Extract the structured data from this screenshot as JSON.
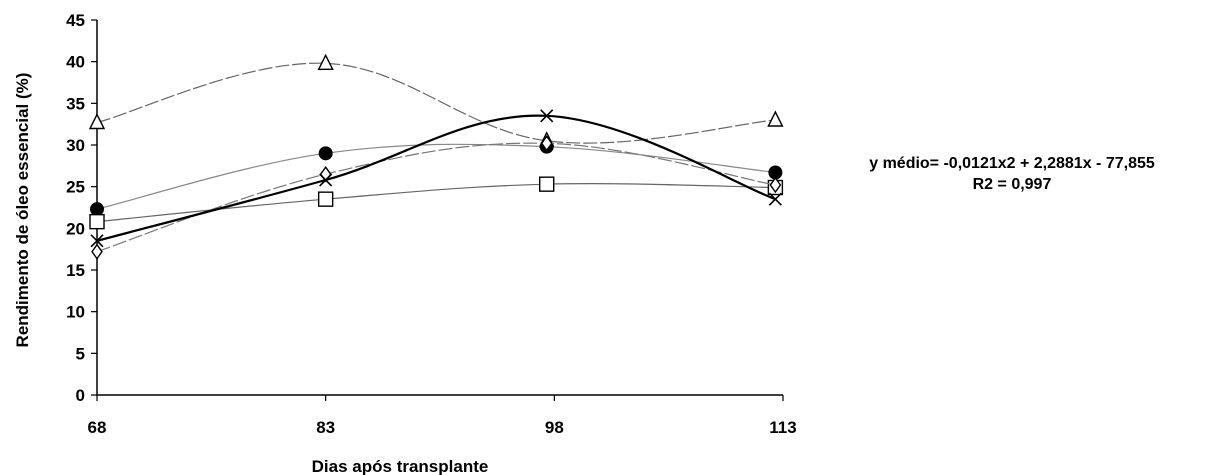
{
  "chart_data": {
    "type": "line",
    "title": "",
    "xlabel": "Dias após transplante",
    "ylabel": "Rendimento de óleo essencial (%)",
    "x": [
      68,
      83,
      98,
      113
    ],
    "x_ticks": [
      "68",
      "83",
      "98",
      "113"
    ],
    "y_ticks": [
      "0",
      "5",
      "10",
      "15",
      "20",
      "25",
      "30",
      "35",
      "40",
      "45"
    ],
    "xlim": [
      68,
      113
    ],
    "ylim": [
      0,
      45
    ],
    "grid": false,
    "legend": "none",
    "series": [
      {
        "marker": "triangle",
        "line": "dashed",
        "color": "#666666",
        "values": [
          [
            68,
            32.7
          ],
          [
            83,
            39.8
          ],
          [
            97.5,
            30.5
          ],
          [
            112.5,
            33.0
          ]
        ]
      },
      {
        "marker": "circle",
        "line": "solid",
        "color": "#888888",
        "values": [
          [
            68,
            22.3
          ],
          [
            83,
            29.0
          ],
          [
            97.5,
            29.8
          ],
          [
            112.5,
            26.7
          ]
        ]
      },
      {
        "marker": "square",
        "line": "solid",
        "color": "#666666",
        "values": [
          [
            68,
            20.8
          ],
          [
            83,
            23.5
          ],
          [
            97.5,
            25.3
          ],
          [
            112.5,
            24.9
          ]
        ]
      },
      {
        "marker": "diamond",
        "line": "dashed",
        "color": "#777777",
        "values": [
          [
            68,
            17.2
          ],
          [
            83,
            26.5
          ],
          [
            97.5,
            30.2
          ],
          [
            112.5,
            25.2
          ]
        ]
      },
      {
        "marker": "cross",
        "line": "solid",
        "color": "#000000",
        "values": [
          [
            68,
            18.5
          ],
          [
            83,
            25.8
          ],
          [
            97.5,
            33.5
          ],
          [
            112.5,
            23.5
          ]
        ]
      }
    ],
    "annotation": {
      "equation": "y médio= -0,0121x2 + 2,2881x - 77,855",
      "r2": "R2 = 0,997"
    }
  }
}
